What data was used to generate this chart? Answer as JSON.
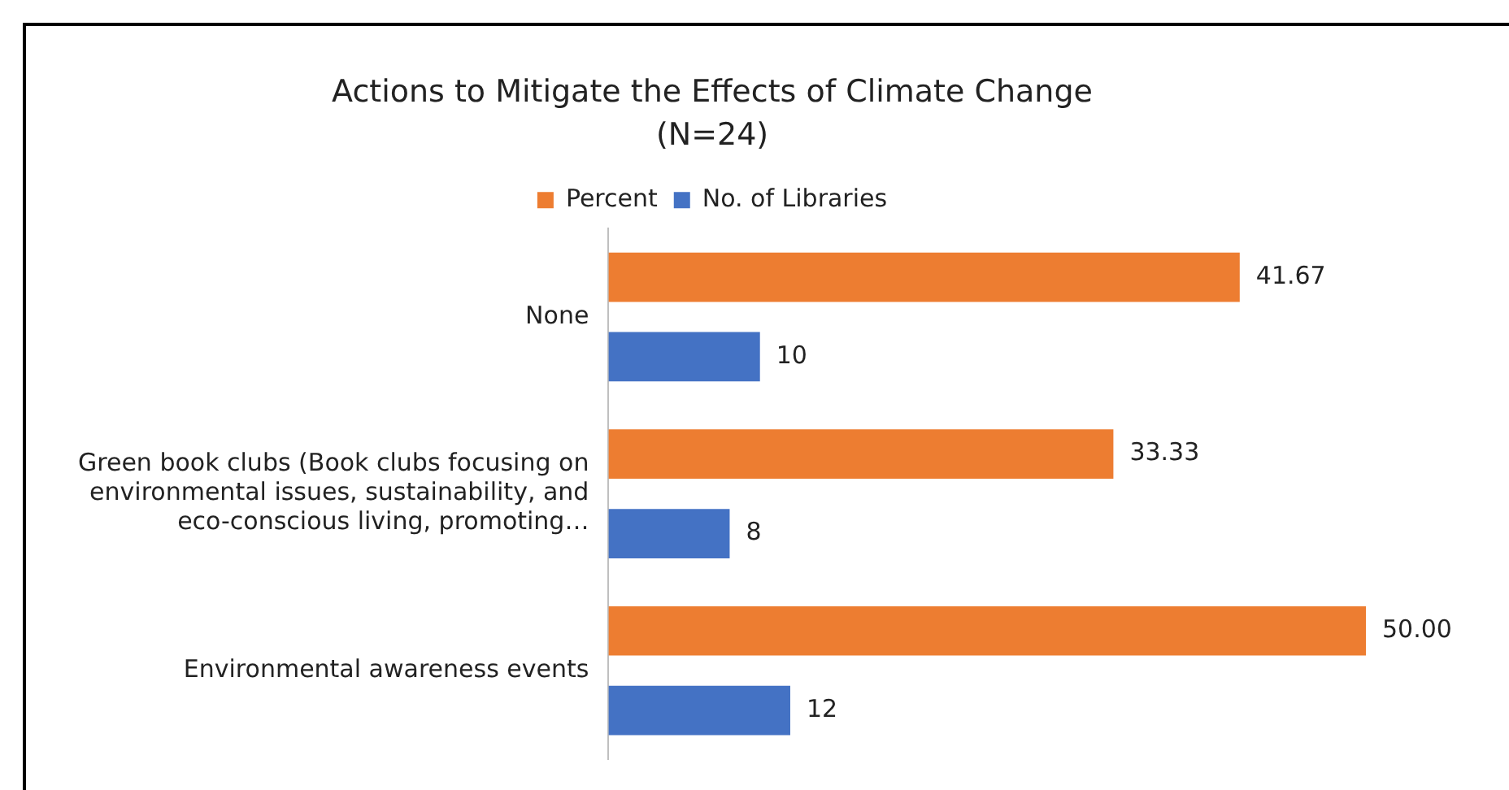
{
  "chart_data": {
    "type": "bar",
    "orientation": "horizontal",
    "title": "Actions to Mitigate the Effects of Climate Change",
    "subtitle": "(N=24)",
    "categories": [
      "None",
      "Green book clubs (Book clubs focusing on environmental issues, sustainability, and eco-conscious living, promoting…",
      "Environmental awareness events"
    ],
    "series": [
      {
        "name": "Percent",
        "color": "#ed7d31",
        "values": [
          41.67,
          33.33,
          50.0
        ],
        "value_labels": [
          "41.67",
          "33.33",
          "50.00"
        ]
      },
      {
        "name": "No. of Libraries",
        "color": "#4472c4",
        "values": [
          10,
          8,
          12
        ],
        "value_labels": [
          "10",
          "8",
          "12"
        ]
      }
    ],
    "tick_labels": "y",
    "legend": "top"
  }
}
